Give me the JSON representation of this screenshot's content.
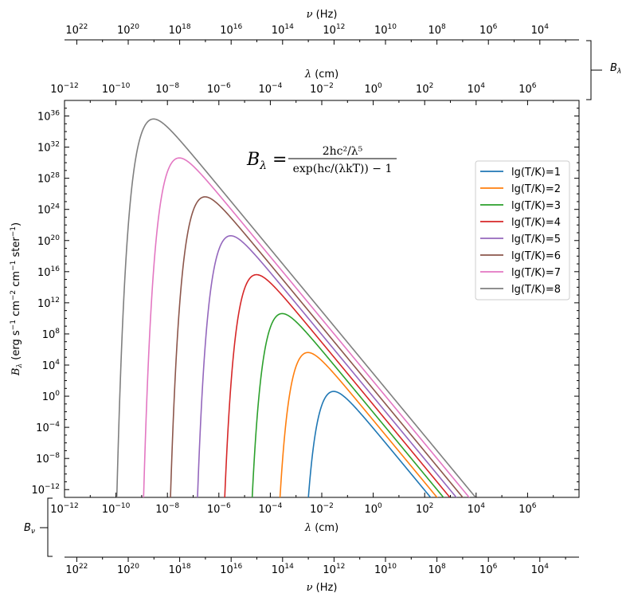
{
  "chart_data": {
    "type": "line",
    "title": "",
    "formula": {
      "lhs": "B",
      "lhs_sub": "λ",
      "numerator": "2hc²/λ⁵",
      "denominator": "exp(hc/(λkT)) − 1"
    },
    "xlabel": "λ (cm)",
    "ylabel": "B_λ (erg s⁻¹ cm⁻² cm⁻¹ ster⁻¹)",
    "ylabel_parts": {
      "main": "B",
      "sub": "λ",
      "units": [
        "(erg s",
        "-1",
        " cm",
        "-2",
        " cm",
        "-1",
        " ster",
        "-1",
        ")"
      ]
    },
    "x_scale": "log",
    "y_scale": "log",
    "xlim": [
      1e-12,
      100000000.0
    ],
    "ylim": [
      1e-13,
      1e+38
    ],
    "x_tick_exponents": [
      -12,
      -10,
      -8,
      -6,
      -4,
      -2,
      0,
      2,
      4,
      6
    ],
    "y_tick_exponents": [
      -12,
      -8,
      -4,
      0,
      4,
      8,
      12,
      16,
      20,
      24,
      28,
      32,
      36
    ],
    "nu_tick_exponents": [
      22,
      20,
      18,
      16,
      14,
      12,
      10,
      8,
      6,
      4
    ],
    "top_axis_label": "λ (cm)",
    "nu_axis_label": "ν (Hz)",
    "bracket_top_label": "B_λ",
    "bracket_bottom_label": "B_ν",
    "legend_position": "center-right",
    "grid": false,
    "series": [
      {
        "name": "lg(T/K)=1",
        "log_T": 1,
        "color": "#1f77b4"
      },
      {
        "name": "lg(T/K)=2",
        "log_T": 2,
        "color": "#ff7f0e"
      },
      {
        "name": "lg(T/K)=3",
        "log_T": 3,
        "color": "#2ca02c"
      },
      {
        "name": "lg(T/K)=4",
        "log_T": 4,
        "color": "#d62728"
      },
      {
        "name": "lg(T/K)=5",
        "log_T": 5,
        "color": "#9467bd"
      },
      {
        "name": "lg(T/K)=6",
        "log_T": 6,
        "color": "#8c564b"
      },
      {
        "name": "lg(T/K)=7",
        "log_T": 7,
        "color": "#e377c2"
      },
      {
        "name": "lg(T/K)=8",
        "log_T": 8,
        "color": "#7f7f7f"
      }
    ]
  }
}
